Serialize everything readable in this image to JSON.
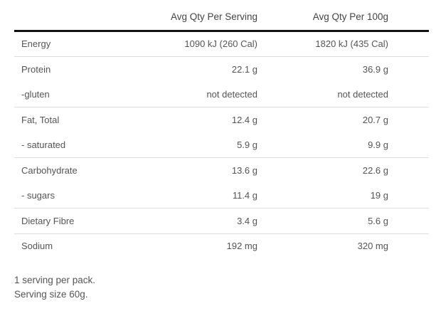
{
  "headers": {
    "per_serving": "Avg Qty Per Serving",
    "per_100g": "Avg Qty Per 100g"
  },
  "rows": [
    {
      "label": "Energy",
      "per_serving": "1090 kJ (260 Cal)",
      "per_100g": "1820 kJ (435 Cal)",
      "divider": true
    },
    {
      "label": "Protein",
      "per_serving": "22.1 g",
      "per_100g": "36.9 g",
      "divider": false
    },
    {
      "label": "-gluten",
      "per_serving": "not detected",
      "per_100g": "not detected",
      "divider": true
    },
    {
      "label": "Fat, Total",
      "per_serving": "12.4 g",
      "per_100g": "20.7 g",
      "divider": false
    },
    {
      "label": "- saturated",
      "per_serving": "5.9 g",
      "per_100g": "9.9 g",
      "divider": true
    },
    {
      "label": "Carbohydrate",
      "per_serving": "13.6 g",
      "per_100g": "22.6 g",
      "divider": false
    },
    {
      "label": "- sugars",
      "per_serving": "11.4 g",
      "per_100g": "19 g",
      "divider": true
    },
    {
      "label": "Dietary Fibre",
      "per_serving": "3.4 g",
      "per_100g": "5.6 g",
      "divider": true
    },
    {
      "label": "Sodium",
      "per_serving": "192 mg",
      "per_100g": "320 mg",
      "divider": false
    }
  ],
  "notes": [
    "1 serving per pack.",
    "Serving size 60g."
  ]
}
